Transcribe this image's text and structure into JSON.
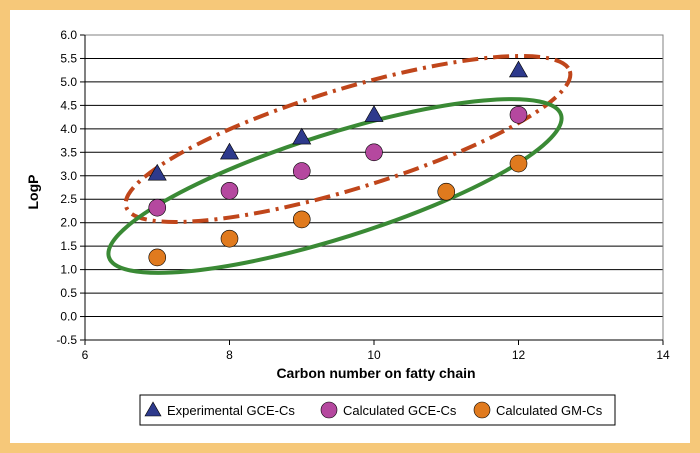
{
  "chart_data": {
    "type": "scatter",
    "title": "",
    "xlabel": "Carbon number on fatty chain",
    "ylabel": "LogP",
    "xlim": [
      6,
      14
    ],
    "ylim": [
      -0.5,
      6.0
    ],
    "x_ticks": [
      "6",
      "8",
      "10",
      "12",
      "14"
    ],
    "y_ticks": [
      "-0.5",
      "0.0",
      "0.5",
      "1.0",
      "1.5",
      "2.0",
      "2.5",
      "3.0",
      "3.5",
      "4.0",
      "4.5",
      "5.0",
      "5.5",
      "6.0"
    ],
    "grid": "horizontal",
    "legend_position": "bottom",
    "series": [
      {
        "name": "Experimental GCE-Cs",
        "marker": "triangle",
        "color": "#2e3a8c",
        "points": [
          [
            7,
            3.05
          ],
          [
            8,
            3.5
          ],
          [
            9,
            3.82
          ],
          [
            10,
            4.3
          ],
          [
            12,
            5.25
          ]
        ]
      },
      {
        "name": "Calculated GCE-Cs",
        "marker": "circle",
        "color": "#b5489f",
        "points": [
          [
            7,
            2.32
          ],
          [
            8,
            2.68
          ],
          [
            9,
            3.1
          ],
          [
            10,
            3.5
          ],
          [
            12,
            4.3
          ]
        ]
      },
      {
        "name": "Calculated GM-Cs",
        "marker": "circle",
        "color": "#e07a1e",
        "points": [
          [
            7,
            1.26
          ],
          [
            8,
            1.66
          ],
          [
            9,
            2.07
          ],
          [
            11,
            2.66
          ],
          [
            12,
            3.26
          ]
        ]
      }
    ],
    "annotations": [
      {
        "shape": "ellipse",
        "style": "dash-dot",
        "color": "#c0461b"
      },
      {
        "shape": "ellipse",
        "style": "solid",
        "color": "#3a8a35"
      }
    ]
  }
}
